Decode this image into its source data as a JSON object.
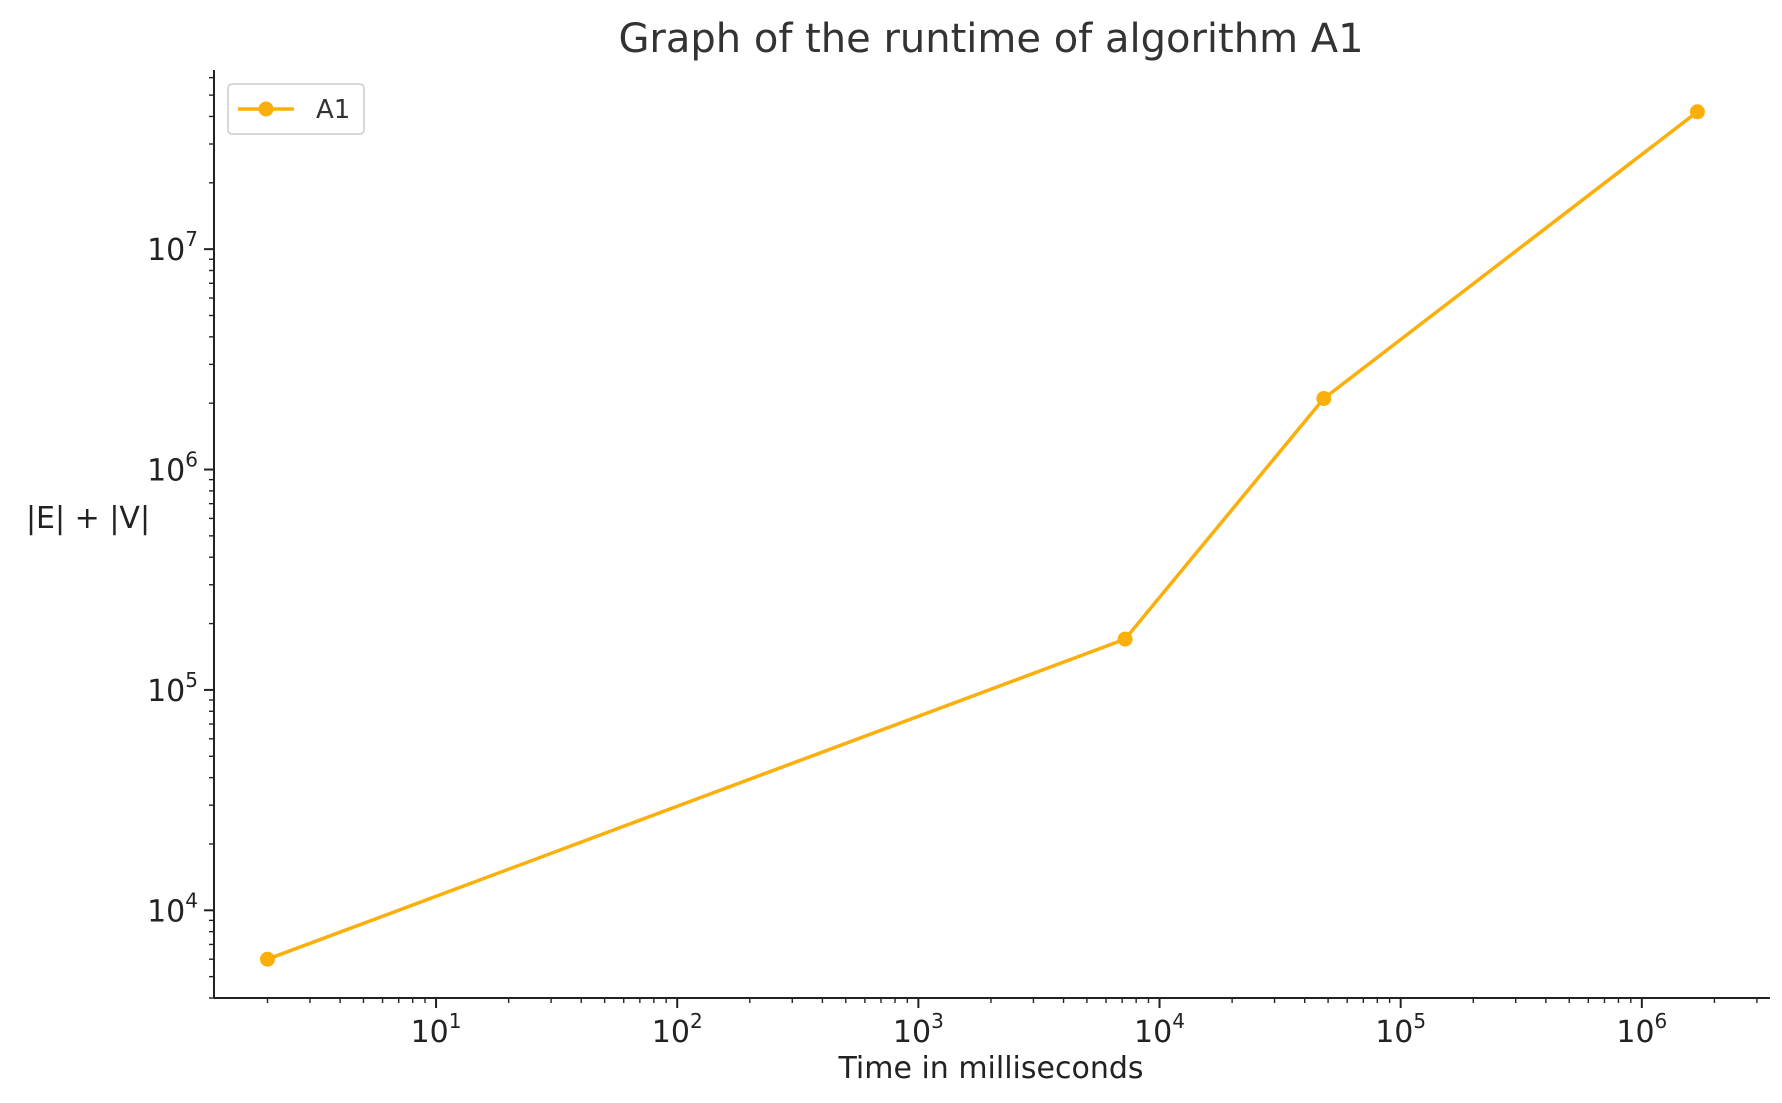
{
  "chart_data": {
    "type": "line",
    "title": "Graph of the runtime of algorithm A1",
    "xlabel": "Time in milliseconds",
    "ylabel": "|E| + |V|",
    "xscale": "log",
    "yscale": "log",
    "xlim": [
      1.2,
      3400000
    ],
    "ylim": [
      4000,
      65000000
    ],
    "x_ticks": [
      {
        "value": 10,
        "base": "10",
        "exp": "1"
      },
      {
        "value": 100,
        "base": "10",
        "exp": "2"
      },
      {
        "value": 1000,
        "base": "10",
        "exp": "3"
      },
      {
        "value": 10000,
        "base": "10",
        "exp": "4"
      },
      {
        "value": 100000,
        "base": "10",
        "exp": "5"
      },
      {
        "value": 1000000,
        "base": "10",
        "exp": "6"
      }
    ],
    "y_ticks": [
      {
        "value": 10000,
        "base": "10",
        "exp": "4"
      },
      {
        "value": 100000,
        "base": "10",
        "exp": "5"
      },
      {
        "value": 1000000,
        "base": "10",
        "exp": "6"
      },
      {
        "value": 10000000,
        "base": "10",
        "exp": "7"
      }
    ],
    "grid": false,
    "legend_position": "top-left",
    "series": [
      {
        "name": "A1",
        "color": "#FBAF0B",
        "x": [
          2,
          7200,
          48000,
          1700000
        ],
        "y": [
          6000,
          170000,
          2100000,
          42000000
        ]
      }
    ]
  }
}
